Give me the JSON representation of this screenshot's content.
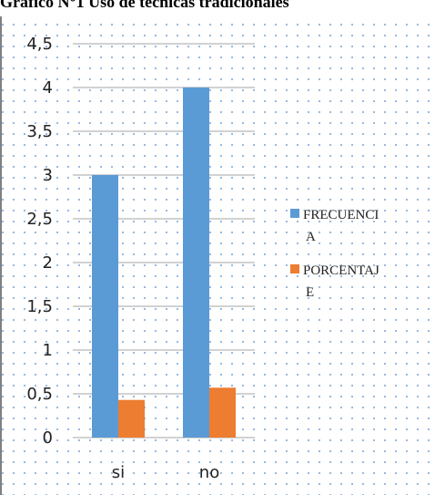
{
  "chart_data": {
    "type": "bar",
    "title": "Gráfico N°1 Uso de técnicas tradicionales",
    "categories": [
      "si",
      "no"
    ],
    "series": [
      {
        "name": "FRECUENCIA",
        "values": [
          3,
          4
        ],
        "color": "#5B9BD5"
      },
      {
        "name": "PORCENTAJE",
        "values": [
          0.43,
          0.57
        ],
        "color": "#ED7D31"
      }
    ],
    "legend_lines": [
      [
        "FRECUENCI",
        "A"
      ],
      [
        "PORCENTAJ",
        "E"
      ]
    ],
    "y_ticks": [
      "0",
      "0,5",
      "1",
      "1,5",
      "2",
      "2,5",
      "3",
      "3,5",
      "4",
      "4,5"
    ],
    "ylim": [
      0,
      4.5
    ],
    "grid": true,
    "legend_position": "right",
    "background": "dotted"
  }
}
